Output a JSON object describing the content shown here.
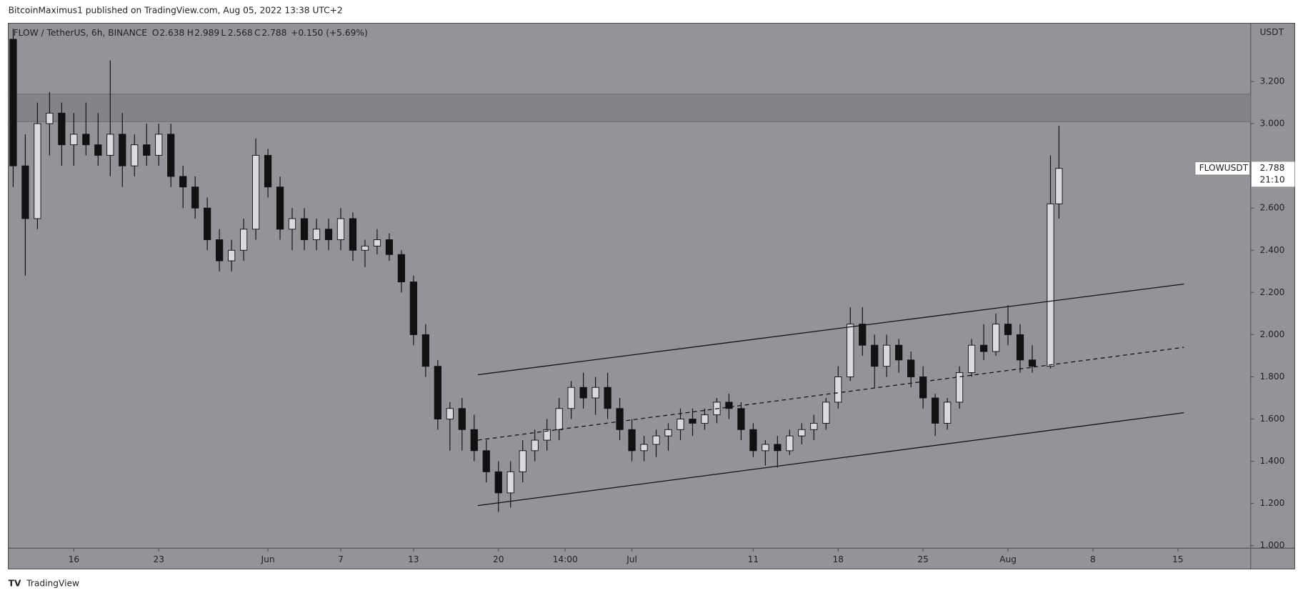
{
  "header": {
    "publisher": "BitcoinMaximus1 published on TradingView.com, Aug 05, 2022 13:38 UTC+2"
  },
  "footer": {
    "brand": "TradingView"
  },
  "chart_data": {
    "type": "candlestick",
    "legend": {
      "symbol": "FLOW / TetherUS, 6h, BINANCE",
      "o_label": "O",
      "o": "2.638",
      "h_label": "H",
      "h": "2.989",
      "l_label": "L",
      "l": "2.568",
      "c_label": "C",
      "c": "2.788",
      "change": "+0.150 (+5.69%)"
    },
    "y_unit": "USDT",
    "last_price": {
      "symbol": "FLOWUSDT",
      "value": 2.788,
      "countdown": "21:10"
    },
    "up_color": "#d9dadc",
    "down_color": "#111111",
    "x": [
      11,
      12,
      13,
      14,
      15,
      16,
      17,
      18,
      19,
      20,
      21,
      22,
      23,
      24,
      25,
      26,
      27,
      28,
      29,
      30,
      31,
      32,
      33,
      34,
      35,
      36,
      37,
      38,
      39,
      40,
      41,
      42,
      43,
      44,
      45,
      46,
      47,
      48,
      49,
      50,
      51,
      52,
      53,
      54,
      55,
      56,
      57,
      58,
      59,
      60,
      61,
      62,
      63,
      64,
      65,
      66,
      67,
      68,
      69,
      70,
      71,
      72,
      73,
      74,
      75,
      76,
      77,
      78,
      79,
      80,
      81,
      82,
      83,
      84,
      85,
      86,
      87,
      88,
      89,
      90,
      91,
      92,
      93,
      94,
      95,
      96.5,
      97.2
    ],
    "open": [
      3.4,
      2.8,
      2.55,
      3.0,
      3.05,
      2.9,
      2.95,
      2.9,
      2.85,
      2.95,
      2.8,
      2.9,
      2.85,
      2.95,
      2.75,
      2.7,
      2.6,
      2.45,
      2.35,
      2.4,
      2.5,
      2.85,
      2.7,
      2.5,
      2.55,
      2.45,
      2.5,
      2.45,
      2.55,
      2.4,
      2.42,
      2.45,
      2.38,
      2.25,
      2.0,
      1.85,
      1.6,
      1.65,
      1.55,
      1.45,
      1.35,
      1.25,
      1.35,
      1.45,
      1.5,
      1.55,
      1.65,
      1.75,
      1.7,
      1.75,
      1.65,
      1.55,
      1.45,
      1.48,
      1.52,
      1.55,
      1.6,
      1.58,
      1.62,
      1.68,
      1.65,
      1.55,
      1.45,
      1.48,
      1.45,
      1.52,
      1.55,
      1.58,
      1.68,
      1.8,
      2.05,
      1.95,
      1.85,
      1.95,
      1.88,
      1.8,
      1.7,
      1.58,
      1.68,
      1.82,
      1.95,
      1.92,
      2.05,
      2.0,
      1.88,
      1.85,
      2.62
    ],
    "high": [
      3.45,
      2.95,
      3.1,
      3.15,
      3.1,
      3.05,
      3.1,
      3.05,
      3.3,
      3.05,
      2.95,
      3.0,
      3.0,
      3.0,
      2.8,
      2.75,
      2.65,
      2.5,
      2.45,
      2.55,
      2.93,
      2.88,
      2.75,
      2.6,
      2.6,
      2.55,
      2.55,
      2.6,
      2.58,
      2.45,
      2.5,
      2.48,
      2.4,
      2.28,
      2.05,
      1.88,
      1.68,
      1.7,
      1.62,
      1.5,
      1.4,
      1.4,
      1.5,
      1.55,
      1.6,
      1.7,
      1.78,
      1.82,
      1.8,
      1.82,
      1.7,
      1.6,
      1.52,
      1.55,
      1.58,
      1.65,
      1.65,
      1.65,
      1.7,
      1.72,
      1.68,
      1.58,
      1.5,
      1.52,
      1.55,
      1.58,
      1.62,
      1.7,
      1.85,
      2.13,
      2.13,
      2.0,
      2.0,
      1.98,
      1.92,
      1.85,
      1.72,
      1.7,
      1.85,
      1.98,
      2.05,
      2.1,
      2.14,
      2.05,
      1.95,
      2.85,
      2.99
    ],
    "low": [
      2.7,
      2.28,
      2.5,
      2.85,
      2.8,
      2.8,
      2.85,
      2.8,
      2.75,
      2.7,
      2.75,
      2.8,
      2.8,
      2.7,
      2.6,
      2.55,
      2.4,
      2.3,
      2.3,
      2.35,
      2.45,
      2.65,
      2.45,
      2.4,
      2.4,
      2.4,
      2.4,
      2.4,
      2.35,
      2.32,
      2.38,
      2.35,
      2.2,
      1.95,
      1.8,
      1.55,
      1.45,
      1.45,
      1.4,
      1.3,
      1.16,
      1.18,
      1.3,
      1.4,
      1.45,
      1.5,
      1.6,
      1.65,
      1.62,
      1.6,
      1.5,
      1.4,
      1.4,
      1.42,
      1.45,
      1.5,
      1.52,
      1.55,
      1.58,
      1.6,
      1.5,
      1.42,
      1.38,
      1.37,
      1.43,
      1.48,
      1.5,
      1.55,
      1.65,
      1.78,
      1.9,
      1.75,
      1.8,
      1.82,
      1.75,
      1.65,
      1.52,
      1.55,
      1.65,
      1.8,
      1.88,
      1.9,
      1.95,
      1.82,
      1.82,
      1.84,
      2.55
    ],
    "close": [
      2.8,
      2.55,
      3.0,
      3.05,
      2.9,
      2.95,
      2.9,
      2.85,
      2.95,
      2.8,
      2.9,
      2.85,
      2.95,
      2.75,
      2.7,
      2.6,
      2.45,
      2.35,
      2.4,
      2.5,
      2.85,
      2.7,
      2.5,
      2.55,
      2.45,
      2.5,
      2.45,
      2.55,
      2.4,
      2.42,
      2.45,
      2.38,
      2.25,
      2.0,
      1.85,
      1.6,
      1.65,
      1.55,
      1.45,
      1.35,
      1.25,
      1.35,
      1.45,
      1.5,
      1.55,
      1.65,
      1.75,
      1.7,
      1.75,
      1.65,
      1.55,
      1.45,
      1.48,
      1.52,
      1.55,
      1.6,
      1.58,
      1.62,
      1.68,
      1.65,
      1.55,
      1.45,
      1.48,
      1.45,
      1.52,
      1.55,
      1.58,
      1.68,
      1.8,
      2.05,
      1.95,
      1.85,
      1.95,
      1.88,
      1.8,
      1.7,
      1.58,
      1.68,
      1.82,
      1.95,
      1.92,
      2.05,
      2.0,
      1.88,
      1.85,
      2.62,
      2.788
    ],
    "zone": {
      "ylim": [
        3.01,
        3.14
      ],
      "color": "#7f8187"
    },
    "lines": [
      {
        "x": [
          49.3,
          107.5
        ],
        "y": [
          1.81,
          2.24
        ],
        "dashed": false
      },
      {
        "x": [
          49.3,
          107.5
        ],
        "y": [
          1.5,
          1.94
        ],
        "dashed": true
      },
      {
        "x": [
          49.3,
          107.5
        ],
        "y": [
          1.19,
          1.63
        ],
        "dashed": false
      }
    ],
    "xlim": [
      10.6,
      113
    ],
    "xticks": [
      {
        "value": 16,
        "label": "16"
      },
      {
        "value": 23,
        "label": "23"
      },
      {
        "value": 32,
        "label": "Jun"
      },
      {
        "value": 38,
        "label": "7"
      },
      {
        "value": 44,
        "label": "13"
      },
      {
        "value": 51,
        "label": "20"
      },
      {
        "value": 56.5,
        "label": "14:00"
      },
      {
        "value": 62,
        "label": "Jul"
      },
      {
        "value": 72,
        "label": "11"
      },
      {
        "value": 79,
        "label": "18"
      },
      {
        "value": 86,
        "label": "25"
      },
      {
        "value": 93,
        "label": "Aug"
      },
      {
        "value": 100,
        "label": "8"
      },
      {
        "value": 107,
        "label": "15"
      }
    ],
    "ylim": [
      0.988,
      3.476
    ],
    "yticks": [
      {
        "value": 1,
        "label": "1.000"
      },
      {
        "value": 1.2,
        "label": "1.200"
      },
      {
        "value": 1.4,
        "label": "1.400"
      },
      {
        "value": 1.6,
        "label": "1.600"
      },
      {
        "value": 1.8,
        "label": "1.800"
      },
      {
        "value": 2,
        "label": "2.000"
      },
      {
        "value": 2.2,
        "label": "2.200"
      },
      {
        "value": 2.4,
        "label": "2.400"
      },
      {
        "value": 2.6,
        "label": "2.600"
      },
      {
        "value": 2.8,
        "label": "2.800"
      },
      {
        "value": 3,
        "label": "3.000"
      },
      {
        "value": 3.2,
        "label": "3.200"
      }
    ]
  }
}
